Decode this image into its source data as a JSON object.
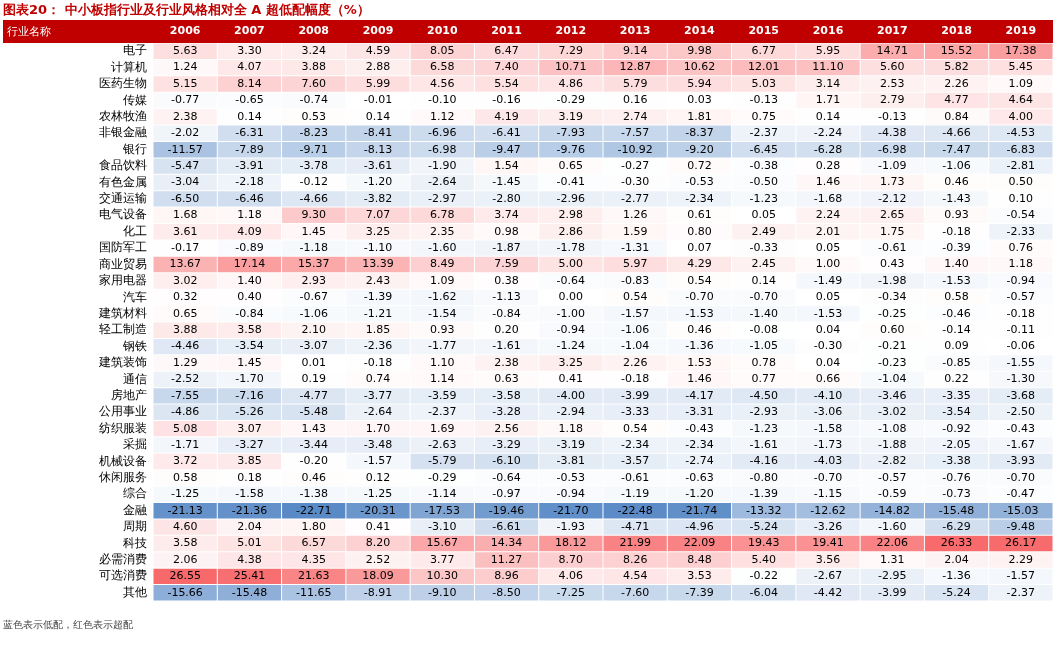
{
  "chart_data": {
    "type": "heatmap",
    "title": "图表20：  中小板指行业及行业风格相对全 A 超低配幅度（%）",
    "ylabel": "行业名称",
    "annotations": [
      "蓝色表示低配，红色表示超配"
    ],
    "categories": [
      "2006",
      "2007",
      "2008",
      "2009",
      "2010",
      "2011",
      "2012",
      "2013",
      "2014",
      "2015",
      "2016",
      "2017",
      "2018",
      "2019"
    ],
    "y_categories": [
      "电子",
      "计算机",
      "医药生物",
      "传媒",
      "农林牧渔",
      "非银金融",
      "银行",
      "食品饮料",
      "有色金属",
      "交通运输",
      "电气设备",
      "化工",
      "国防军工",
      "商业贸易",
      "家用电器",
      "汽车",
      "建筑材料",
      "轻工制造",
      "钢铁",
      "建筑装饰",
      "通信",
      "房地产",
      "公用事业",
      "纺织服装",
      "采掘",
      "机械设备",
      "休闲服务",
      "综合",
      "金融",
      "周期",
      "科技",
      "必需消费",
      "可选消费",
      "其他"
    ],
    "cells": [
      [
        5.63,
        3.3,
        3.24,
        4.59,
        8.05,
        6.47,
        7.29,
        9.14,
        9.98,
        6.77,
        5.95,
        14.71,
        15.52,
        17.38
      ],
      [
        1.24,
        4.07,
        3.88,
        2.88,
        6.58,
        7.4,
        10.71,
        12.87,
        10.62,
        12.01,
        11.1,
        5.6,
        5.82,
        5.45
      ],
      [
        5.15,
        8.14,
        7.6,
        5.99,
        4.56,
        5.54,
        4.86,
        5.79,
        5.94,
        5.03,
        3.14,
        2.53,
        2.26,
        1.09
      ],
      [
        -0.77,
        -0.65,
        -0.74,
        -0.01,
        -0.1,
        -0.16,
        -0.29,
        0.16,
        0.03,
        -0.13,
        1.71,
        2.79,
        4.77,
        4.64
      ],
      [
        2.38,
        0.14,
        0.53,
        0.14,
        1.12,
        4.19,
        3.19,
        2.74,
        1.81,
        0.75,
        0.14,
        -0.13,
        0.84,
        4.0
      ],
      [
        -2.02,
        -6.31,
        -8.23,
        -8.41,
        -6.96,
        -6.41,
        -7.93,
        -7.57,
        -8.37,
        -2.37,
        -2.24,
        -4.38,
        -4.66,
        -4.53
      ],
      [
        -11.57,
        -7.89,
        -9.71,
        -8.13,
        -6.98,
        -9.47,
        -9.76,
        -10.92,
        -9.2,
        -6.45,
        -6.28,
        -6.98,
        -7.47,
        -6.83
      ],
      [
        -5.47,
        -3.91,
        -3.78,
        -3.61,
        -1.9,
        1.54,
        0.65,
        -0.27,
        0.72,
        -0.38,
        0.28,
        -1.09,
        -1.06,
        -2.81
      ],
      [
        -3.04,
        -2.18,
        -0.12,
        -1.2,
        -2.64,
        -1.45,
        -0.41,
        -0.3,
        -0.53,
        -0.5,
        1.46,
        1.73,
        0.46,
        0.5
      ],
      [
        -6.5,
        -6.46,
        -4.66,
        -3.82,
        -2.97,
        -2.8,
        -2.96,
        -2.77,
        -2.34,
        -1.23,
        -1.68,
        -2.12,
        -1.43,
        0.1
      ],
      [
        1.68,
        1.18,
        9.3,
        7.07,
        6.78,
        3.74,
        2.98,
        1.26,
        0.61,
        0.05,
        2.24,
        2.65,
        0.93,
        -0.54
      ],
      [
        3.61,
        4.09,
        1.45,
        3.25,
        2.35,
        0.98,
        2.86,
        1.59,
        0.8,
        2.49,
        2.01,
        1.75,
        -0.18,
        -2.33
      ],
      [
        -0.17,
        -0.89,
        -1.18,
        -1.1,
        -1.6,
        -1.87,
        -1.78,
        -1.31,
        0.07,
        -0.33,
        0.05,
        -0.61,
        -0.39,
        0.76
      ],
      [
        13.67,
        17.14,
        15.37,
        13.39,
        8.49,
        7.59,
        5.0,
        5.97,
        4.29,
        2.45,
        1.0,
        0.43,
        1.4,
        1.18
      ],
      [
        3.02,
        1.4,
        2.93,
        2.43,
        1.09,
        0.38,
        -0.64,
        -0.83,
        0.54,
        0.14,
        -1.49,
        -1.98,
        -1.53,
        -0.94
      ],
      [
        0.32,
        0.4,
        -0.67,
        -1.39,
        -1.62,
        -1.13,
        0.0,
        0.54,
        -0.7,
        -0.7,
        0.05,
        -0.34,
        0.58,
        -0.57
      ],
      [
        0.65,
        -0.84,
        -1.06,
        -1.21,
        -1.54,
        -0.84,
        -1.0,
        -1.57,
        -1.53,
        -1.4,
        -1.53,
        -0.25,
        -0.46,
        -0.18
      ],
      [
        3.88,
        3.58,
        2.1,
        1.85,
        0.93,
        0.2,
        -0.94,
        -1.06,
        0.46,
        -0.08,
        0.04,
        0.6,
        -0.14,
        -0.11
      ],
      [
        -4.46,
        -3.54,
        -3.07,
        -2.36,
        -1.77,
        -1.61,
        -1.24,
        -1.04,
        -1.36,
        -1.05,
        -0.3,
        -0.21,
        0.09,
        -0.06
      ],
      [
        1.29,
        1.45,
        0.01,
        -0.18,
        1.1,
        2.38,
        3.25,
        2.26,
        1.53,
        0.78,
        0.04,
        -0.23,
        -0.85,
        -1.55
      ],
      [
        -2.52,
        -1.7,
        0.19,
        0.74,
        1.14,
        0.63,
        0.41,
        -0.18,
        1.46,
        0.77,
        0.66,
        -1.04,
        0.22,
        -1.3
      ],
      [
        -7.55,
        -7.16,
        -4.77,
        -3.77,
        -3.59,
        -3.58,
        -4.0,
        -3.99,
        -4.17,
        -4.5,
        -4.1,
        -3.46,
        -3.35,
        -3.68
      ],
      [
        -4.86,
        -5.26,
        -5.48,
        -2.64,
        -2.37,
        -3.28,
        -2.94,
        -3.33,
        -3.31,
        -2.93,
        -3.06,
        -3.02,
        -3.54,
        -2.5
      ],
      [
        5.08,
        3.07,
        1.43,
        1.7,
        1.69,
        2.56,
        1.18,
        0.54,
        -0.43,
        -1.23,
        -1.58,
        -1.08,
        -0.92,
        -0.43
      ],
      [
        -1.71,
        -3.27,
        -3.44,
        -3.48,
        -2.63,
        -3.29,
        -3.19,
        -2.34,
        -2.34,
        -1.61,
        -1.73,
        -1.88,
        -2.05,
        -1.67
      ],
      [
        3.72,
        3.85,
        -0.2,
        -1.57,
        -5.79,
        -6.1,
        -3.81,
        -3.57,
        -2.74,
        -4.16,
        -4.03,
        -2.82,
        -3.38,
        -3.93
      ],
      [
        0.58,
        0.18,
        0.46,
        0.12,
        -0.29,
        -0.64,
        -0.53,
        -0.61,
        -0.63,
        -0.8,
        -0.7,
        -0.57,
        -0.76,
        -0.7
      ],
      [
        -1.25,
        -1.58,
        -1.38,
        -1.25,
        -1.14,
        -0.97,
        -0.94,
        -1.19,
        -1.2,
        -1.39,
        -1.15,
        -0.59,
        -0.73,
        -0.47
      ],
      [
        -21.13,
        -21.36,
        -22.71,
        -20.31,
        -17.53,
        -19.46,
        -21.7,
        -22.48,
        -21.74,
        -13.32,
        -12.62,
        -14.82,
        -15.48,
        -15.03
      ],
      [
        4.6,
        2.04,
        1.8,
        0.41,
        -3.1,
        -6.61,
        -1.93,
        -4.71,
        -4.96,
        -5.24,
        -3.26,
        -1.6,
        -6.29,
        -9.48
      ],
      [
        3.58,
        5.01,
        6.57,
        8.2,
        15.67,
        14.34,
        18.12,
        21.99,
        22.09,
        19.43,
        19.41,
        22.06,
        26.33,
        26.17
      ],
      [
        2.06,
        4.38,
        4.35,
        2.52,
        3.77,
        11.27,
        8.7,
        8.26,
        8.48,
        5.4,
        3.56,
        1.31,
        2.04,
        2.29
      ],
      [
        26.55,
        25.41,
        21.63,
        18.09,
        10.3,
        8.96,
        4.06,
        4.54,
        3.53,
        -0.22,
        -2.67,
        -2.95,
        -1.36,
        -1.57
      ],
      [
        -15.66,
        -15.48,
        -11.65,
        -8.91,
        -9.1,
        -8.5,
        -7.25,
        -7.6,
        -7.39,
        -6.04,
        -4.42,
        -3.99,
        -5.24,
        -2.37
      ]
    ],
    "cell_labels": [
      [
        "5.63",
        "3.30",
        "3.24",
        "4.59",
        "8.05",
        "6.47",
        "7.29",
        "9.14",
        "9.98",
        "6.77",
        "5.95",
        "14.71",
        "15.52",
        "17.38"
      ],
      [
        "1.24",
        "4.07",
        "3.88",
        "2.88",
        "6.58",
        "7.40",
        "10.71",
        "12.87",
        "10.62",
        "12.01",
        "11.10",
        "5.60",
        "5.82",
        "5.45"
      ],
      [
        "5.15",
        "8.14",
        "7.60",
        "5.99",
        "4.56",
        "5.54",
        "4.86",
        "5.79",
        "5.94",
        "5.03",
        "3.14",
        "2.53",
        "2.26",
        "1.09"
      ],
      [
        "-0.77",
        "-0.65",
        "-0.74",
        "-0.01",
        "-0.10",
        "-0.16",
        "-0.29",
        "0.16",
        "0.03",
        "-0.13",
        "1.71",
        "2.79",
        "4.77",
        "4.64"
      ],
      [
        "2.38",
        "0.14",
        "0.53",
        "0.14",
        "1.12",
        "4.19",
        "3.19",
        "2.74",
        "1.81",
        "0.75",
        "0.14",
        "-0.13",
        "0.84",
        "4.00"
      ],
      [
        "-2.02",
        "-6.31",
        "-8.23",
        "-8.41",
        "-6.96",
        "-6.41",
        "-7.93",
        "-7.57",
        "-8.37",
        "-2.37",
        "-2.24",
        "-4.38",
        "-4.66",
        "-4.53"
      ],
      [
        "-11.57",
        "-7.89",
        "-9.71",
        "-8.13",
        "-6.98",
        "-9.47",
        "-9.76",
        "-10.92",
        "-9.20",
        "-6.45",
        "-6.28",
        "-6.98",
        "-7.47",
        "-6.83"
      ],
      [
        "-5.47",
        "-3.91",
        "-3.78",
        "-3.61",
        "-1.90",
        "1.54",
        "0.65",
        "-0.27",
        "0.72",
        "-0.38",
        "0.28",
        "-1.09",
        "-1.06",
        "-2.81"
      ],
      [
        "-3.04",
        "-2.18",
        "-0.12",
        "-1.20",
        "-2.64",
        "-1.45",
        "-0.41",
        "-0.30",
        "-0.53",
        "-0.50",
        "1.46",
        "1.73",
        "0.46",
        "0.50"
      ],
      [
        "-6.50",
        "-6.46",
        "-4.66",
        "-3.82",
        "-2.97",
        "-2.80",
        "-2.96",
        "-2.77",
        "-2.34",
        "-1.23",
        "-1.68",
        "-2.12",
        "-1.43",
        "0.10"
      ],
      [
        "1.68",
        "1.18",
        "9.30",
        "7.07",
        "6.78",
        "3.74",
        "2.98",
        "1.26",
        "0.61",
        "0.05",
        "2.24",
        "2.65",
        "0.93",
        "-0.54"
      ],
      [
        "3.61",
        "4.09",
        "1.45",
        "3.25",
        "2.35",
        "0.98",
        "2.86",
        "1.59",
        "0.80",
        "2.49",
        "2.01",
        "1.75",
        "-0.18",
        "-2.33"
      ],
      [
        "-0.17",
        "-0.89",
        "-1.18",
        "-1.10",
        "-1.60",
        "-1.87",
        "-1.78",
        "-1.31",
        "0.07",
        "-0.33",
        "0.05",
        "-0.61",
        "-0.39",
        "0.76"
      ],
      [
        "13.67",
        "17.14",
        "15.37",
        "13.39",
        "8.49",
        "7.59",
        "5.00",
        "5.97",
        "4.29",
        "2.45",
        "1.00",
        "0.43",
        "1.40",
        "1.18"
      ],
      [
        "3.02",
        "1.40",
        "2.93",
        "2.43",
        "1.09",
        "0.38",
        "-0.64",
        "-0.83",
        "0.54",
        "0.14",
        "-1.49",
        "-1.98",
        "-1.53",
        "-0.94"
      ],
      [
        "0.32",
        "0.40",
        "-0.67",
        "-1.39",
        "-1.62",
        "-1.13",
        "0.00",
        "0.54",
        "-0.70",
        "-0.70",
        "0.05",
        "-0.34",
        "0.58",
        "-0.57"
      ],
      [
        "0.65",
        "-0.84",
        "-1.06",
        "-1.21",
        "-1.54",
        "-0.84",
        "-1.00",
        "-1.57",
        "-1.53",
        "-1.40",
        "-1.53",
        "-0.25",
        "-0.46",
        "-0.18"
      ],
      [
        "3.88",
        "3.58",
        "2.10",
        "1.85",
        "0.93",
        "0.20",
        "-0.94",
        "-1.06",
        "0.46",
        "-0.08",
        "0.04",
        "0.60",
        "-0.14",
        "-0.11"
      ],
      [
        "-4.46",
        "-3.54",
        "-3.07",
        "-2.36",
        "-1.77",
        "-1.61",
        "-1.24",
        "-1.04",
        "-1.36",
        "-1.05",
        "-0.30",
        "-0.21",
        "0.09",
        "-0.06"
      ],
      [
        "1.29",
        "1.45",
        "0.01",
        "-0.18",
        "1.10",
        "2.38",
        "3.25",
        "2.26",
        "1.53",
        "0.78",
        "0.04",
        "-0.23",
        "-0.85",
        "-1.55"
      ],
      [
        "-2.52",
        "-1.70",
        "0.19",
        "0.74",
        "1.14",
        "0.63",
        "0.41",
        "-0.18",
        "1.46",
        "0.77",
        "0.66",
        "-1.04",
        "0.22",
        "-1.30"
      ],
      [
        "-7.55",
        "-7.16",
        "-4.77",
        "-3.77",
        "-3.59",
        "-3.58",
        "-4.00",
        "-3.99",
        "-4.17",
        "-4.50",
        "-4.10",
        "-3.46",
        "-3.35",
        "-3.68"
      ],
      [
        "-4.86",
        "-5.26",
        "-5.48",
        "-2.64",
        "-2.37",
        "-3.28",
        "-2.94",
        "-3.33",
        "-3.31",
        "-2.93",
        "-3.06",
        "-3.02",
        "-3.54",
        "-2.50"
      ],
      [
        "5.08",
        "3.07",
        "1.43",
        "1.70",
        "1.69",
        "2.56",
        "1.18",
        "0.54",
        "-0.43",
        "-1.23",
        "-1.58",
        "-1.08",
        "-0.92",
        "-0.43"
      ],
      [
        "-1.71",
        "-3.27",
        "-3.44",
        "-3.48",
        "-2.63",
        "-3.29",
        "-3.19",
        "-2.34",
        "-2.34",
        "-1.61",
        "-1.73",
        "-1.88",
        "-2.05",
        "-1.67"
      ],
      [
        "3.72",
        "3.85",
        "-0.20",
        "-1.57",
        "-5.79",
        "-6.10",
        "-3.81",
        "-3.57",
        "-2.74",
        "-4.16",
        "-4.03",
        "-2.82",
        "-3.38",
        "-3.93"
      ],
      [
        "0.58",
        "0.18",
        "0.46",
        "0.12",
        "-0.29",
        "-0.64",
        "-0.53",
        "-0.61",
        "-0.63",
        "-0.80",
        "-0.70",
        "-0.57",
        "-0.76",
        "-0.70"
      ],
      [
        "-1.25",
        "-1.58",
        "-1.38",
        "-1.25",
        "-1.14",
        "-0.97",
        "-0.94",
        "-1.19",
        "-1.20",
        "-1.39",
        "-1.15",
        "-0.59",
        "-0.73",
        "-0.47"
      ],
      [
        "-21.13",
        "-21.36",
        "-22.71",
        "-20.31",
        "-17.53",
        "-19.46",
        "-21.70",
        "-22.48",
        "-21.74",
        "-13.32",
        "-12.62",
        "-14.82",
        "-15.48",
        "-15.03"
      ],
      [
        "4.60",
        "2.04",
        "1.80",
        "0.41",
        "-3.10",
        "-6.61",
        "-1.93",
        "-4.71",
        "-4.96",
        "-5.24",
        "-3.26",
        "-1.60",
        "-6.29",
        "-9.48"
      ],
      [
        "3.58",
        "5.01",
        "6.57",
        "8.20",
        "15.67",
        "14.34",
        "18.12",
        "21.99",
        "22.09",
        "19.43",
        "19.41",
        "22.06",
        "26.33",
        "26.17"
      ],
      [
        "2.06",
        "4.38",
        "4.35",
        "2.52",
        "3.77",
        "11.27",
        "8.70",
        "8.26",
        "8.48",
        "5.40",
        "3.56",
        "1.31",
        "2.04",
        "2.29"
      ],
      [
        "26.55",
        "25.41",
        "21.63",
        "18.09",
        "10.30",
        "8.96",
        "4.06",
        "4.54",
        "3.53",
        "-0.22",
        "-2.67",
        "-2.95",
        "-1.36",
        "-1.57"
      ],
      [
        "-15.66",
        "-15.48",
        "-11.65",
        "-8.91",
        "-9.10",
        "-8.50",
        "-7.25",
        "-7.60",
        "-7.39",
        "-6.04",
        "-4.42",
        "-3.99",
        "-5.24",
        "-2.37"
      ]
    ]
  }
}
